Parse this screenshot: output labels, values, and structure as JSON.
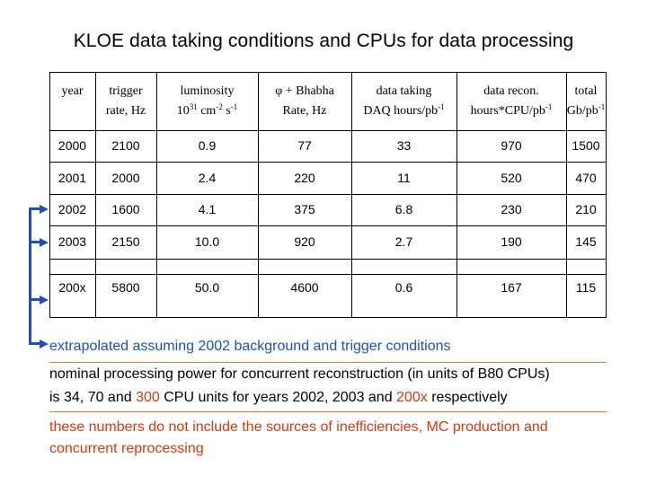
{
  "title": "KLOE data taking conditions and CPUs for data processing",
  "table": {
    "headers": [
      {
        "l1": "year",
        "l2": ""
      },
      {
        "l1": "trigger",
        "l2": "rate, Hz"
      },
      {
        "l1": "luminosity",
        "l2a": "10",
        "l2sup": "31",
        "l2b": " cm",
        "l2sup2": "-2",
        "l2c": " s",
        "l2sup3": "-1"
      },
      {
        "l1": "φ + Bhabha",
        "l2": "Rate, Hz"
      },
      {
        "l1": "data taking",
        "l2a": "DAQ hours/pb",
        "l2sup": "-1"
      },
      {
        "l1": "data recon.",
        "l2a": "hours*CPU/pb",
        "l2sup": "-1"
      },
      {
        "l1": "total",
        "l2a": "Gb/pb",
        "l2sup": "-1"
      }
    ],
    "rows": [
      [
        "2000",
        "2100",
        "0.9",
        "77",
        "33",
        "970",
        "1500"
      ],
      [
        "2001",
        "2000",
        "2.4",
        "220",
        "11",
        "520",
        "470"
      ],
      [
        "2002",
        "1600",
        "4.1",
        "375",
        "6.8",
        "230",
        "210"
      ],
      [
        "2003",
        "2150",
        "10.0",
        "920",
        "2.7",
        "190",
        "145"
      ],
      [
        "200x",
        "5800",
        "50.0",
        "4600",
        "0.6",
        "167",
        "115"
      ]
    ]
  },
  "notes": {
    "extrapolated": "extrapolated assuming 2002 background and trigger conditions",
    "nominal_line1": "nominal processing power for concurrent reconstruction (in units of B80 CPUs)",
    "nominal_line2_a": "is 34, 70 and ",
    "nominal_line2_b": "300",
    "nominal_line2_c": " CPU units for years 2002, 2003 and ",
    "nominal_line2_d": "200x",
    "nominal_line2_e": " respectively",
    "caveat_line1": "these numbers do not include the sources of inefficiencies, MC production and",
    "caveat_line2": "concurrent reprocessing"
  },
  "colors": {
    "accent_blue": "#1f4fb5",
    "accent_red": "#d7380e"
  }
}
